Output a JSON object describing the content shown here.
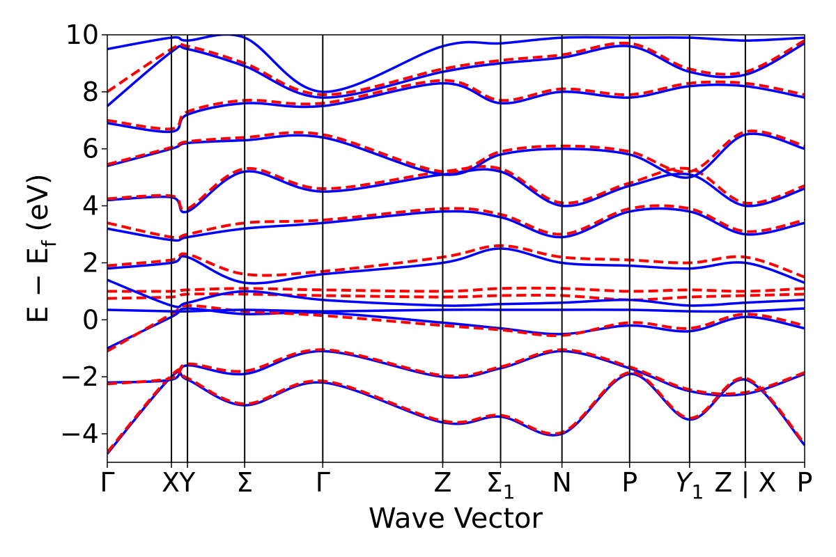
{
  "chart_data": {
    "type": "line",
    "xlabel": "Wave Vector",
    "ylabel": "E − E",
    "ylabel_sub": "f",
    "ylabel_unit": "(eV)",
    "ylim": [
      -5,
      10
    ],
    "y_ticks": [
      -4,
      -2,
      0,
      2,
      4,
      6,
      8,
      10
    ],
    "y_tick_labels": [
      "−4",
      "−2",
      "0",
      "2",
      "4",
      "6",
      "8",
      "10"
    ],
    "xlim": [
      0,
      1
    ],
    "x_ticks": [
      {
        "pos": 0.0,
        "label": "Γ"
      },
      {
        "pos": 0.092,
        "label": "X"
      },
      {
        "pos": 0.115,
        "label": "Y"
      },
      {
        "pos": 0.197,
        "label": "Σ"
      },
      {
        "pos": 0.309,
        "label": "Γ"
      },
      {
        "pos": 0.481,
        "label": "Z"
      },
      {
        "pos": 0.564,
        "label": "Σ",
        "sub": "1"
      },
      {
        "pos": 0.652,
        "label": "N"
      },
      {
        "pos": 0.749,
        "label": "P"
      },
      {
        "pos": 0.835,
        "label": "Y",
        "sub": "1",
        "italic": true
      },
      {
        "pos": 0.915,
        "label": "Z | X",
        "boundary": true
      },
      {
        "pos": 1.0,
        "label": "P"
      }
    ],
    "colors": {
      "solid": "#0000ff",
      "dashed": "#ff0000"
    },
    "series": [
      {
        "style": "solid",
        "x": [
          0,
          0.092,
          0.115,
          0.197,
          0.309,
          0.481,
          0.564,
          0.652,
          0.749,
          0.835,
          0.915,
          1.0
        ],
        "y": [
          -4.7,
          -2.0,
          -2.1,
          -3.0,
          -2.2,
          -3.6,
          -3.4,
          -4.0,
          -1.9,
          -3.5,
          -2.1,
          -4.4
        ]
      },
      {
        "style": "dashed",
        "x": [
          0,
          0.092,
          0.115,
          0.197,
          0.309,
          0.481,
          0.564,
          0.652,
          0.749,
          0.835,
          0.915,
          1.0
        ],
        "y": [
          -4.65,
          -1.95,
          -2.05,
          -2.95,
          -2.15,
          -3.55,
          -3.35,
          -3.95,
          -1.85,
          -3.45,
          -2.05,
          -4.35
        ]
      },
      {
        "style": "solid",
        "x": [
          0,
          0.092,
          0.115,
          0.197,
          0.309,
          0.481,
          0.564,
          0.652,
          0.749,
          0.835,
          0.915,
          1.0
        ],
        "y": [
          -2.2,
          -2.1,
          -1.6,
          -1.9,
          -1.1,
          -2.0,
          -1.7,
          -1.1,
          -1.7,
          -2.5,
          -2.6,
          -1.9
        ]
      },
      {
        "style": "dashed",
        "x": [
          0,
          0.092,
          0.115,
          0.197,
          0.309,
          0.481,
          0.564,
          0.652,
          0.749,
          0.835,
          0.915,
          1.0
        ],
        "y": [
          -2.25,
          -2.05,
          -1.55,
          -1.8,
          -1.05,
          -1.95,
          -1.65,
          -1.05,
          -1.65,
          -2.45,
          -2.55,
          -1.85
        ]
      },
      {
        "style": "solid",
        "x": [
          0,
          0.092,
          0.115,
          0.197,
          0.309,
          0.481,
          0.564,
          0.652,
          0.749,
          0.835,
          0.915,
          1.0
        ],
        "y": [
          -1.0,
          0.1,
          0.4,
          0.2,
          0.25,
          -0.1,
          -0.3,
          -0.5,
          -0.2,
          -0.4,
          0.1,
          -0.3
        ]
      },
      {
        "style": "dashed",
        "x": [
          0,
          0.092,
          0.115,
          0.197,
          0.309,
          0.481,
          0.564,
          0.652,
          0.749,
          0.835,
          0.915,
          1.0
        ],
        "y": [
          -1.1,
          0.2,
          0.5,
          0.3,
          0.15,
          -0.2,
          -0.35,
          -0.55,
          -0.1,
          -0.3,
          0.2,
          -0.2
        ]
      },
      {
        "style": "solid",
        "x": [
          0,
          0.092,
          0.115,
          0.197,
          0.309,
          0.481,
          0.564,
          0.652,
          0.749,
          0.835,
          0.915,
          1.0
        ],
        "y": [
          0.35,
          0.3,
          0.3,
          0.35,
          0.3,
          0.35,
          0.35,
          0.35,
          0.35,
          0.3,
          0.3,
          0.4
        ]
      },
      {
        "style": "dashed",
        "x": [
          0,
          0.092,
          0.115,
          0.197,
          0.309,
          0.481,
          0.564,
          0.652,
          0.749,
          0.835,
          0.915,
          1.0
        ],
        "y": [
          0.75,
          0.8,
          0.9,
          0.9,
          0.85,
          0.8,
          0.85,
          0.85,
          0.7,
          0.8,
          0.85,
          0.9
        ]
      },
      {
        "style": "dashed",
        "x": [
          0,
          0.092,
          0.115,
          0.197,
          0.309,
          0.481,
          0.564,
          0.652,
          0.749,
          0.835,
          0.915,
          1.0
        ],
        "y": [
          1.0,
          1.0,
          1.05,
          1.1,
          1.05,
          1.0,
          1.1,
          1.1,
          1.0,
          1.05,
          1.0,
          1.1
        ]
      },
      {
        "style": "solid",
        "x": [
          0,
          0.092,
          0.115,
          0.197,
          0.309,
          0.481,
          0.564,
          0.652,
          0.749,
          0.835,
          0.915,
          1.0
        ],
        "y": [
          1.4,
          0.5,
          0.6,
          1.0,
          0.7,
          0.5,
          0.55,
          0.6,
          0.7,
          0.5,
          0.6,
          0.7
        ]
      },
      {
        "style": "solid",
        "x": [
          0,
          0.092,
          0.115,
          0.197,
          0.309,
          0.481,
          0.564,
          0.652,
          0.749,
          0.835,
          0.915,
          1.0
        ],
        "y": [
          1.8,
          2.0,
          2.2,
          1.3,
          1.6,
          2.0,
          2.5,
          2.0,
          1.9,
          1.8,
          2.0,
          1.3
        ]
      },
      {
        "style": "dashed",
        "x": [
          0,
          0.092,
          0.115,
          0.197,
          0.309,
          0.481,
          0.564,
          0.652,
          0.749,
          0.835,
          0.915,
          1.0
        ],
        "y": [
          1.9,
          2.1,
          2.3,
          1.6,
          1.7,
          2.2,
          2.6,
          2.2,
          2.1,
          2.0,
          2.2,
          1.5
        ]
      },
      {
        "style": "solid",
        "x": [
          0,
          0.092,
          0.115,
          0.197,
          0.309,
          0.481,
          0.564,
          0.652,
          0.749,
          0.835,
          0.915,
          1.0
        ],
        "y": [
          3.2,
          2.8,
          2.9,
          3.2,
          3.4,
          3.8,
          3.6,
          2.9,
          3.8,
          3.8,
          3.0,
          3.4
        ]
      },
      {
        "style": "dashed",
        "x": [
          0,
          0.092,
          0.115,
          0.197,
          0.309,
          0.481,
          0.564,
          0.652,
          0.749,
          0.835,
          0.915,
          1.0
        ],
        "y": [
          3.4,
          2.9,
          3.0,
          3.4,
          3.5,
          3.9,
          3.7,
          3.0,
          3.9,
          3.9,
          3.1,
          3.5
        ]
      },
      {
        "style": "solid",
        "x": [
          0,
          0.092,
          0.115,
          0.197,
          0.309,
          0.481,
          0.564,
          0.652,
          0.749,
          0.835,
          0.915,
          1.0
        ],
        "y": [
          4.2,
          4.3,
          3.8,
          5.2,
          4.5,
          5.1,
          5.2,
          4.0,
          4.7,
          5.1,
          4.0,
          4.6
        ]
      },
      {
        "style": "dashed",
        "x": [
          0,
          0.092,
          0.115,
          0.197,
          0.309,
          0.481,
          0.564,
          0.652,
          0.749,
          0.835,
          0.915,
          1.0
        ],
        "y": [
          4.25,
          4.35,
          3.9,
          5.3,
          4.6,
          5.2,
          5.3,
          4.1,
          4.8,
          5.3,
          4.1,
          4.7
        ]
      },
      {
        "style": "solid",
        "x": [
          0,
          0.092,
          0.115,
          0.197,
          0.309,
          0.481,
          0.564,
          0.652,
          0.749,
          0.835,
          0.915,
          1.0
        ],
        "y": [
          5.4,
          6.0,
          6.2,
          6.3,
          6.4,
          5.1,
          5.8,
          6.0,
          5.8,
          5.0,
          6.5,
          6.0
        ]
      },
      {
        "style": "dashed",
        "x": [
          0,
          0.092,
          0.115,
          0.197,
          0.309,
          0.481,
          0.564,
          0.652,
          0.749,
          0.835,
          0.915,
          1.0
        ],
        "y": [
          5.45,
          6.05,
          6.25,
          6.4,
          6.5,
          5.2,
          5.9,
          6.1,
          5.9,
          5.2,
          6.6,
          6.1
        ]
      },
      {
        "style": "solid",
        "x": [
          0,
          0.092,
          0.115,
          0.197,
          0.309,
          0.481,
          0.564,
          0.652,
          0.749,
          0.835,
          0.915,
          1.0
        ],
        "y": [
          6.9,
          6.6,
          7.2,
          7.6,
          7.5,
          8.3,
          7.6,
          8.0,
          7.8,
          8.2,
          8.2,
          7.8
        ]
      },
      {
        "style": "dashed",
        "x": [
          0,
          0.092,
          0.115,
          0.197,
          0.309,
          0.481,
          0.564,
          0.652,
          0.749,
          0.835,
          0.915,
          1.0
        ],
        "y": [
          7.0,
          6.7,
          7.3,
          7.7,
          7.6,
          8.4,
          7.7,
          8.1,
          7.9,
          8.3,
          8.3,
          7.9
        ]
      },
      {
        "style": "solid",
        "x": [
          0,
          0.092,
          0.115,
          0.197,
          0.309,
          0.481,
          0.564,
          0.652,
          0.749,
          0.835,
          0.915,
          1.0
        ],
        "y": [
          7.5,
          9.4,
          9.5,
          8.9,
          7.8,
          8.7,
          9.0,
          9.2,
          9.6,
          8.7,
          8.6,
          9.7
        ]
      },
      {
        "style": "dashed",
        "x": [
          0,
          0.092,
          0.115,
          0.197,
          0.309,
          0.481,
          0.564,
          0.652,
          0.749,
          0.835,
          0.915,
          1.0
        ],
        "y": [
          8.0,
          9.5,
          9.6,
          9.0,
          7.9,
          8.8,
          9.1,
          9.3,
          9.7,
          8.8,
          8.7,
          9.8
        ]
      },
      {
        "style": "solid",
        "x": [
          0,
          0.092,
          0.115,
          0.197,
          0.309,
          0.481,
          0.564,
          0.652,
          0.749,
          0.835,
          0.915,
          1.0
        ],
        "y": [
          9.5,
          9.9,
          9.8,
          9.9,
          8.0,
          9.6,
          9.7,
          9.9,
          9.9,
          9.9,
          9.8,
          9.9
        ]
      }
    ]
  }
}
